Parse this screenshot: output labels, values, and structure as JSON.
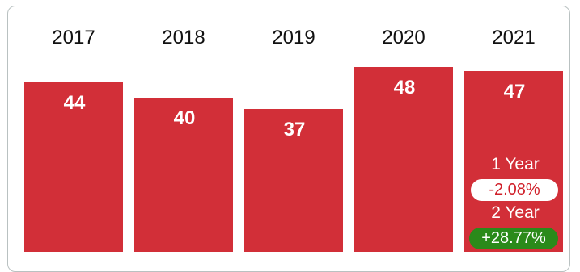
{
  "chart_data": {
    "type": "bar",
    "categories": [
      "2017",
      "2018",
      "2019",
      "2020",
      "2021"
    ],
    "values": [
      44,
      40,
      37,
      48,
      47
    ],
    "title": "",
    "xlabel": "",
    "ylabel": "",
    "grid": false,
    "bar_color": "#d22f38",
    "changes": [
      {
        "label": "1 Year",
        "value": "-2.08%",
        "direction": "negative"
      },
      {
        "label": "2 Year",
        "value": "+28.77%",
        "direction": "positive"
      }
    ]
  },
  "colors": {
    "bar": "#d22f38",
    "negative_text": "#d0202a",
    "positive_bg": "#2a8a1a"
  }
}
